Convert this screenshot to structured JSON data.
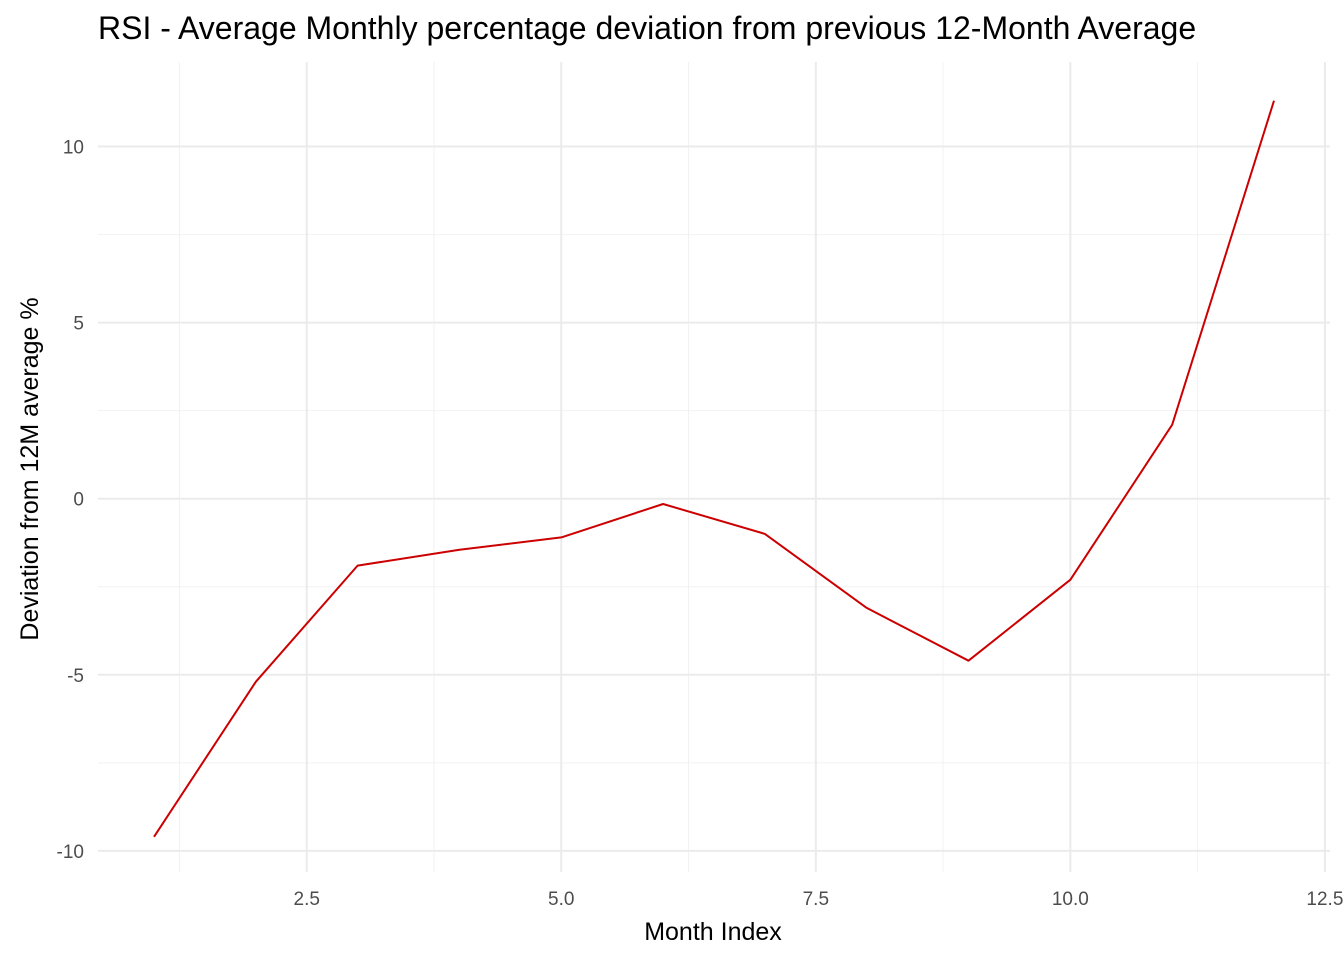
{
  "chart_data": {
    "type": "line",
    "title": "RSI - Average Monthly percentage deviation from previous 12-Month Average",
    "xlabel": "Month Index",
    "ylabel": "Deviation from 12M average %",
    "xlim": [
      0.45,
      12.55
    ],
    "ylim": [
      -10.6,
      12.4
    ],
    "x_ticks": [
      2.5,
      5.0,
      7.5,
      10.0,
      12.5
    ],
    "x_tick_labels": [
      "2.5",
      "5.0",
      "7.5",
      "10.0",
      "12.5"
    ],
    "x_minor_ticks": [
      1.25,
      3.75,
      6.25,
      8.75,
      11.25
    ],
    "y_ticks": [
      -10,
      -5,
      0,
      5,
      10
    ],
    "y_tick_labels": [
      "-10",
      "-5",
      "0",
      "5",
      "10"
    ],
    "y_minor_ticks": [
      -7.5,
      -2.5,
      2.5,
      7.5
    ],
    "grid": true,
    "series": [
      {
        "color": "#cc0000",
        "x": [
          1,
          2,
          3,
          4,
          5,
          6,
          7,
          8,
          9,
          10,
          11,
          12
        ],
        "y": [
          -9.6,
          -5.2,
          -1.9,
          -1.45,
          -1.1,
          -0.15,
          -1.0,
          -3.1,
          -4.6,
          -2.3,
          2.1,
          11.3
        ]
      }
    ]
  }
}
